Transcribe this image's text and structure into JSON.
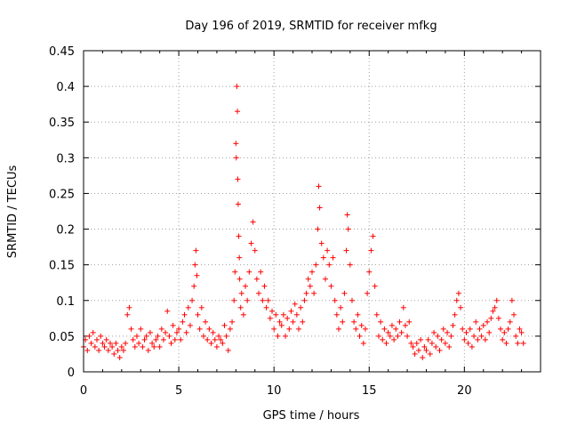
{
  "chart_data": {
    "type": "scatter",
    "title": "Day 196 of 2019, SRMTID for receiver mfkg",
    "xlabel": "GPS time / hours",
    "ylabel": "SRMTID / TECUs",
    "xlim": [
      0,
      24
    ],
    "ylim": [
      0,
      0.45
    ],
    "x_ticks": [
      0,
      5,
      10,
      15,
      20
    ],
    "x_tick_labels": [
      "0",
      "5",
      "10",
      "15",
      "20"
    ],
    "y_ticks": [
      0,
      0.05,
      0.1,
      0.15,
      0.2,
      0.25,
      0.3,
      0.35,
      0.4,
      0.45
    ],
    "y_tick_labels": [
      "0",
      "0.05",
      "0.1",
      "0.15",
      "0.2",
      "0.25",
      "0.3",
      "0.35",
      "0.4",
      "0.45"
    ],
    "grid": true,
    "marker": "plus",
    "color": "#ff0000",
    "series": [
      {
        "name": "SRMTID",
        "points": [
          [
            0.0,
            0.035
          ],
          [
            0.1,
            0.045
          ],
          [
            0.2,
            0.03
          ],
          [
            0.3,
            0.05
          ],
          [
            0.4,
            0.04
          ],
          [
            0.5,
            0.055
          ],
          [
            0.6,
            0.035
          ],
          [
            0.7,
            0.045
          ],
          [
            0.8,
            0.03
          ],
          [
            0.9,
            0.05
          ],
          [
            1.0,
            0.04
          ],
          [
            1.1,
            0.035
          ],
          [
            1.2,
            0.045
          ],
          [
            1.3,
            0.03
          ],
          [
            1.4,
            0.04
          ],
          [
            1.5,
            0.035
          ],
          [
            1.6,
            0.025
          ],
          [
            1.7,
            0.04
          ],
          [
            1.8,
            0.03
          ],
          [
            1.9,
            0.02
          ],
          [
            2.0,
            0.035
          ],
          [
            2.1,
            0.03
          ],
          [
            2.2,
            0.04
          ],
          [
            2.3,
            0.08
          ],
          [
            2.4,
            0.09
          ],
          [
            2.5,
            0.06
          ],
          [
            2.6,
            0.045
          ],
          [
            2.7,
            0.035
          ],
          [
            2.8,
            0.05
          ],
          [
            2.9,
            0.04
          ],
          [
            3.0,
            0.06
          ],
          [
            3.1,
            0.035
          ],
          [
            3.2,
            0.045
          ],
          [
            3.3,
            0.05
          ],
          [
            3.4,
            0.03
          ],
          [
            3.5,
            0.055
          ],
          [
            3.6,
            0.04
          ],
          [
            3.7,
            0.035
          ],
          [
            3.8,
            0.045
          ],
          [
            3.9,
            0.05
          ],
          [
            4.0,
            0.035
          ],
          [
            4.1,
            0.06
          ],
          [
            4.2,
            0.045
          ],
          [
            4.3,
            0.055
          ],
          [
            4.4,
            0.085
          ],
          [
            4.5,
            0.05
          ],
          [
            4.6,
            0.04
          ],
          [
            4.7,
            0.065
          ],
          [
            4.8,
            0.045
          ],
          [
            4.9,
            0.055
          ],
          [
            5.0,
            0.06
          ],
          [
            5.1,
            0.045
          ],
          [
            5.2,
            0.07
          ],
          [
            5.3,
            0.08
          ],
          [
            5.4,
            0.055
          ],
          [
            5.5,
            0.09
          ],
          [
            5.6,
            0.065
          ],
          [
            5.7,
            0.1
          ],
          [
            5.8,
            0.12
          ],
          [
            5.85,
            0.15
          ],
          [
            5.9,
            0.17
          ],
          [
            5.95,
            0.135
          ],
          [
            6.0,
            0.08
          ],
          [
            6.1,
            0.06
          ],
          [
            6.2,
            0.09
          ],
          [
            6.3,
            0.05
          ],
          [
            6.4,
            0.07
          ],
          [
            6.5,
            0.045
          ],
          [
            6.6,
            0.06
          ],
          [
            6.7,
            0.04
          ],
          [
            6.8,
            0.055
          ],
          [
            6.9,
            0.045
          ],
          [
            7.0,
            0.035
          ],
          [
            7.1,
            0.05
          ],
          [
            7.2,
            0.045
          ],
          [
            7.3,
            0.04
          ],
          [
            7.4,
            0.065
          ],
          [
            7.5,
            0.05
          ],
          [
            7.6,
            0.03
          ],
          [
            7.7,
            0.06
          ],
          [
            7.8,
            0.07
          ],
          [
            7.9,
            0.1
          ],
          [
            7.95,
            0.14
          ],
          [
            8.0,
            0.32
          ],
          [
            8.02,
            0.3
          ],
          [
            8.05,
            0.4
          ],
          [
            8.08,
            0.365
          ],
          [
            8.1,
            0.27
          ],
          [
            8.12,
            0.235
          ],
          [
            8.15,
            0.19
          ],
          [
            8.18,
            0.16
          ],
          [
            8.2,
            0.13
          ],
          [
            8.25,
            0.09
          ],
          [
            8.3,
            0.11
          ],
          [
            8.4,
            0.08
          ],
          [
            8.5,
            0.12
          ],
          [
            8.6,
            0.1
          ],
          [
            8.7,
            0.14
          ],
          [
            8.8,
            0.18
          ],
          [
            8.9,
            0.21
          ],
          [
            9.0,
            0.17
          ],
          [
            9.1,
            0.13
          ],
          [
            9.2,
            0.11
          ],
          [
            9.3,
            0.14
          ],
          [
            9.4,
            0.1
          ],
          [
            9.5,
            0.12
          ],
          [
            9.6,
            0.09
          ],
          [
            9.7,
            0.1
          ],
          [
            9.8,
            0.075
          ],
          [
            9.9,
            0.085
          ],
          [
            10.0,
            0.06
          ],
          [
            10.1,
            0.08
          ],
          [
            10.2,
            0.05
          ],
          [
            10.3,
            0.07
          ],
          [
            10.4,
            0.065
          ],
          [
            10.5,
            0.08
          ],
          [
            10.6,
            0.05
          ],
          [
            10.7,
            0.075
          ],
          [
            10.8,
            0.06
          ],
          [
            10.9,
            0.085
          ],
          [
            11.0,
            0.07
          ],
          [
            11.1,
            0.095
          ],
          [
            11.2,
            0.08
          ],
          [
            11.3,
            0.06
          ],
          [
            11.4,
            0.09
          ],
          [
            11.5,
            0.07
          ],
          [
            11.6,
            0.1
          ],
          [
            11.7,
            0.11
          ],
          [
            11.8,
            0.13
          ],
          [
            11.9,
            0.12
          ],
          [
            12.0,
            0.14
          ],
          [
            12.1,
            0.11
          ],
          [
            12.2,
            0.15
          ],
          [
            12.3,
            0.2
          ],
          [
            12.35,
            0.26
          ],
          [
            12.4,
            0.23
          ],
          [
            12.5,
            0.18
          ],
          [
            12.6,
            0.16
          ],
          [
            12.7,
            0.13
          ],
          [
            12.8,
            0.17
          ],
          [
            12.9,
            0.15
          ],
          [
            13.0,
            0.12
          ],
          [
            13.1,
            0.16
          ],
          [
            13.2,
            0.1
          ],
          [
            13.3,
            0.08
          ],
          [
            13.4,
            0.06
          ],
          [
            13.5,
            0.09
          ],
          [
            13.6,
            0.07
          ],
          [
            13.7,
            0.11
          ],
          [
            13.8,
            0.17
          ],
          [
            13.85,
            0.22
          ],
          [
            13.9,
            0.2
          ],
          [
            14.0,
            0.15
          ],
          [
            14.1,
            0.1
          ],
          [
            14.2,
            0.07
          ],
          [
            14.3,
            0.06
          ],
          [
            14.4,
            0.08
          ],
          [
            14.5,
            0.05
          ],
          [
            14.6,
            0.065
          ],
          [
            14.7,
            0.04
          ],
          [
            14.8,
            0.06
          ],
          [
            14.9,
            0.11
          ],
          [
            15.0,
            0.14
          ],
          [
            15.1,
            0.17
          ],
          [
            15.2,
            0.19
          ],
          [
            15.3,
            0.12
          ],
          [
            15.4,
            0.08
          ],
          [
            15.5,
            0.05
          ],
          [
            15.6,
            0.07
          ],
          [
            15.7,
            0.045
          ],
          [
            15.8,
            0.06
          ],
          [
            15.9,
            0.04
          ],
          [
            16.0,
            0.055
          ],
          [
            16.1,
            0.05
          ],
          [
            16.2,
            0.065
          ],
          [
            16.3,
            0.045
          ],
          [
            16.4,
            0.06
          ],
          [
            16.5,
            0.05
          ],
          [
            16.6,
            0.07
          ],
          [
            16.7,
            0.055
          ],
          [
            16.8,
            0.09
          ],
          [
            16.9,
            0.065
          ],
          [
            17.0,
            0.05
          ],
          [
            17.1,
            0.07
          ],
          [
            17.2,
            0.04
          ],
          [
            17.3,
            0.035
          ],
          [
            17.4,
            0.025
          ],
          [
            17.5,
            0.04
          ],
          [
            17.6,
            0.03
          ],
          [
            17.7,
            0.045
          ],
          [
            17.8,
            0.02
          ],
          [
            17.9,
            0.035
          ],
          [
            18.0,
            0.03
          ],
          [
            18.1,
            0.045
          ],
          [
            18.2,
            0.025
          ],
          [
            18.3,
            0.04
          ],
          [
            18.4,
            0.055
          ],
          [
            18.5,
            0.035
          ],
          [
            18.6,
            0.05
          ],
          [
            18.7,
            0.03
          ],
          [
            18.8,
            0.045
          ],
          [
            18.9,
            0.06
          ],
          [
            19.0,
            0.04
          ],
          [
            19.1,
            0.055
          ],
          [
            19.2,
            0.035
          ],
          [
            19.3,
            0.05
          ],
          [
            19.4,
            0.065
          ],
          [
            19.5,
            0.08
          ],
          [
            19.6,
            0.1
          ],
          [
            19.7,
            0.11
          ],
          [
            19.8,
            0.09
          ],
          [
            19.9,
            0.06
          ],
          [
            20.0,
            0.045
          ],
          [
            20.1,
            0.055
          ],
          [
            20.2,
            0.04
          ],
          [
            20.3,
            0.06
          ],
          [
            20.4,
            0.035
          ],
          [
            20.5,
            0.05
          ],
          [
            20.6,
            0.07
          ],
          [
            20.7,
            0.045
          ],
          [
            20.8,
            0.06
          ],
          [
            20.9,
            0.05
          ],
          [
            21.0,
            0.065
          ],
          [
            21.1,
            0.045
          ],
          [
            21.2,
            0.07
          ],
          [
            21.3,
            0.055
          ],
          [
            21.4,
            0.075
          ],
          [
            21.5,
            0.085
          ],
          [
            21.6,
            0.09
          ],
          [
            21.7,
            0.1
          ],
          [
            21.8,
            0.075
          ],
          [
            21.9,
            0.06
          ],
          [
            22.0,
            0.045
          ],
          [
            22.1,
            0.055
          ],
          [
            22.2,
            0.04
          ],
          [
            22.3,
            0.06
          ],
          [
            22.4,
            0.07
          ],
          [
            22.5,
            0.1
          ],
          [
            22.6,
            0.08
          ],
          [
            22.7,
            0.05
          ],
          [
            22.8,
            0.04
          ],
          [
            22.9,
            0.06
          ],
          [
            23.0,
            0.055
          ],
          [
            23.1,
            0.04
          ]
        ]
      }
    ]
  }
}
